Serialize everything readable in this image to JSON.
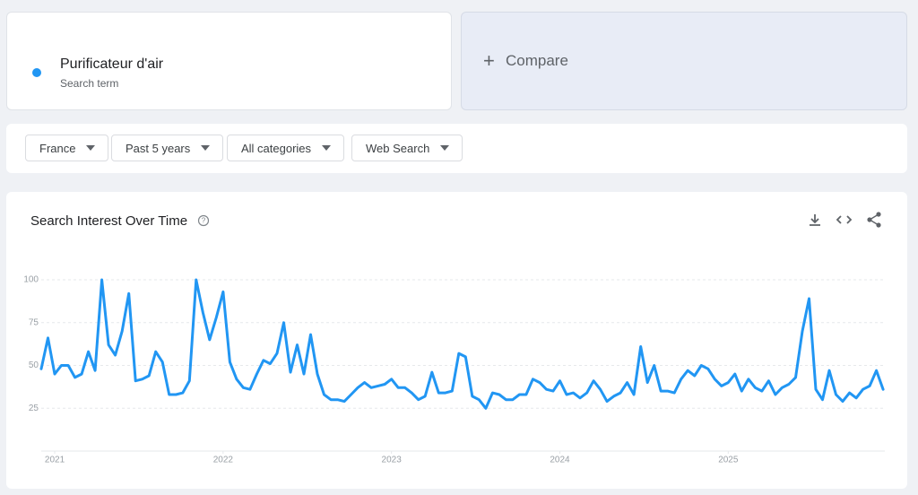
{
  "search_term": {
    "subtitle": "Search term"
  },
  "compare": {
    "label": "Compare"
  },
  "filters": [
    "France",
    "Past 5 years",
    "All categories",
    "Web Search"
  ],
  "chart_data": {
    "type": "line",
    "title": "Search Interest Over Time",
    "x": [
      2020.92,
      2020.96,
      2021,
      2021.04,
      2021.08,
      2021.12,
      2021.16,
      2021.2,
      2021.24,
      2021.28,
      2021.32,
      2021.36,
      2021.4,
      2021.44,
      2021.48,
      2021.52,
      2021.56,
      2021.6,
      2021.64,
      2021.68,
      2021.72,
      2021.76,
      2021.8,
      2021.84,
      2021.88,
      2021.92,
      2021.96,
      2022,
      2022.04,
      2022.08,
      2022.12,
      2022.16,
      2022.2,
      2022.24,
      2022.28,
      2022.32,
      2022.36,
      2022.4,
      2022.44,
      2022.48,
      2022.52,
      2022.56,
      2022.6,
      2022.64,
      2022.68,
      2022.72,
      2022.76,
      2022.8,
      2022.84,
      2022.88,
      2022.92,
      2022.96,
      2023,
      2023.04,
      2023.08,
      2023.12,
      2023.16,
      2023.2,
      2023.24,
      2023.28,
      2023.32,
      2023.36,
      2023.4,
      2023.44,
      2023.48,
      2023.52,
      2023.56,
      2023.6,
      2023.64,
      2023.68,
      2023.72,
      2023.76,
      2023.8,
      2023.84,
      2023.88,
      2023.92,
      2023.96,
      2024,
      2024.04,
      2024.08,
      2024.12,
      2024.16,
      2024.2,
      2024.24,
      2024.28,
      2024.32,
      2024.36,
      2024.4,
      2024.44,
      2024.48,
      2024.52,
      2024.56,
      2024.6,
      2024.64,
      2024.68,
      2024.72,
      2024.76,
      2024.8,
      2024.84,
      2024.88,
      2024.92,
      2024.96,
      2025,
      2025.04,
      2025.08,
      2025.12,
      2025.16,
      2025.2,
      2025.24,
      2025.28,
      2025.32,
      2025.36,
      2025.4,
      2025.44,
      2025.48,
      2025.52,
      2025.56,
      2025.6,
      2025.64,
      2025.68,
      2025.72,
      2025.76,
      2025.8,
      2025.84,
      2025.88,
      2025.92
    ],
    "series": [
      {
        "name": "Purificateur d'air",
        "color": "#2196f3",
        "values": [
          48,
          66,
          45,
          50,
          50,
          43,
          45,
          58,
          47,
          100,
          62,
          56,
          70,
          92,
          41,
          42,
          44,
          58,
          52,
          33,
          33,
          34,
          41,
          100,
          81,
          65,
          78,
          93,
          52,
          42,
          37,
          36,
          45,
          53,
          51,
          57,
          75,
          46,
          62,
          45,
          68,
          45,
          33,
          30,
          30,
          29,
          33,
          37,
          40,
          37,
          38,
          39,
          42,
          37,
          37,
          34,
          30,
          32,
          46,
          34,
          34,
          35,
          57,
          55,
          32,
          30,
          25,
          34,
          33,
          30,
          30,
          33,
          33,
          42,
          40,
          36,
          35,
          41,
          33,
          34,
          31,
          34,
          41,
          36,
          29,
          32,
          34,
          40,
          33,
          61,
          40,
          50,
          35,
          35,
          34,
          42,
          47,
          44,
          50,
          48,
          42,
          38,
          40,
          45,
          35,
          42,
          37,
          35,
          41,
          33,
          37,
          39,
          43,
          70,
          89,
          36,
          30,
          47,
          33,
          29,
          34,
          31,
          36,
          38,
          47,
          36
        ]
      }
    ],
    "xlim": [
      2020.92,
      2025.93
    ],
    "xticks": [
      2021,
      2022,
      2023,
      2024,
      2025
    ],
    "ylim": [
      0,
      100
    ],
    "yticks": [
      25,
      50,
      75,
      100
    ],
    "grid": true
  }
}
